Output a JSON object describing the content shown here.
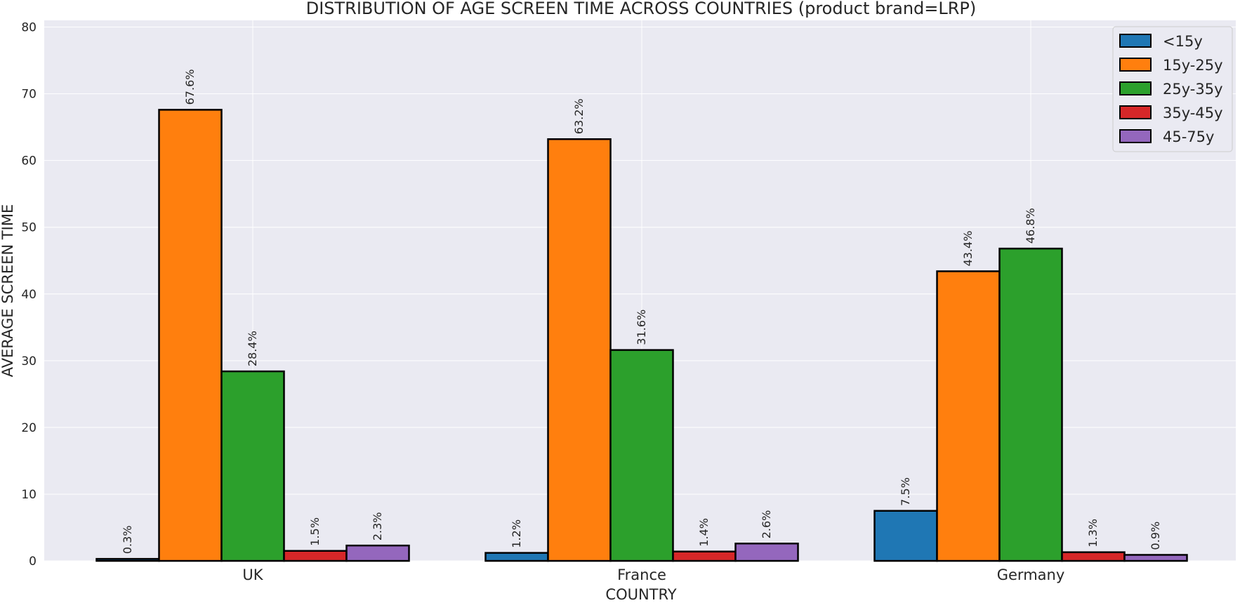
{
  "chart_data": {
    "type": "bar",
    "title": "DISTRIBUTION OF AGE SCREEN TIME ACROSS COUNTRIES (product brand=LRP)",
    "xlabel": "COUNTRY",
    "ylabel": "AVERAGE SCREEN TIME",
    "categories": [
      "UK",
      "France",
      "Germany"
    ],
    "ylim": [
      0,
      81
    ],
    "yticks": [
      0,
      10,
      20,
      30,
      40,
      50,
      60,
      70,
      80
    ],
    "grid": true,
    "legend_position": "top-right",
    "series": [
      {
        "name": "<15y",
        "color": "#1f77b4",
        "values": [
          0.3,
          1.2,
          7.5
        ],
        "labels": [
          "0.3%",
          "1.2%",
          "7.5%"
        ]
      },
      {
        "name": "15y-25y",
        "color": "#ff7f0e",
        "values": [
          67.6,
          63.2,
          43.4
        ],
        "labels": [
          "67.6%",
          "63.2%",
          "43.4%"
        ]
      },
      {
        "name": "25y-35y",
        "color": "#2ca02c",
        "values": [
          28.4,
          31.6,
          46.8
        ],
        "labels": [
          "28.4%",
          "31.6%",
          "46.8%"
        ]
      },
      {
        "name": "35y-45y",
        "color": "#d62728",
        "values": [
          1.5,
          1.4,
          1.3
        ],
        "labels": [
          "1.5%",
          "1.4%",
          "1.3%"
        ]
      },
      {
        "name": "45-75y",
        "color": "#9467bd",
        "values": [
          2.3,
          2.6,
          0.9
        ],
        "labels": [
          "2.3%",
          "2.6%",
          "0.9%"
        ]
      }
    ],
    "background_color": "#eaeaf2",
    "grid_color": "#ffffff"
  }
}
